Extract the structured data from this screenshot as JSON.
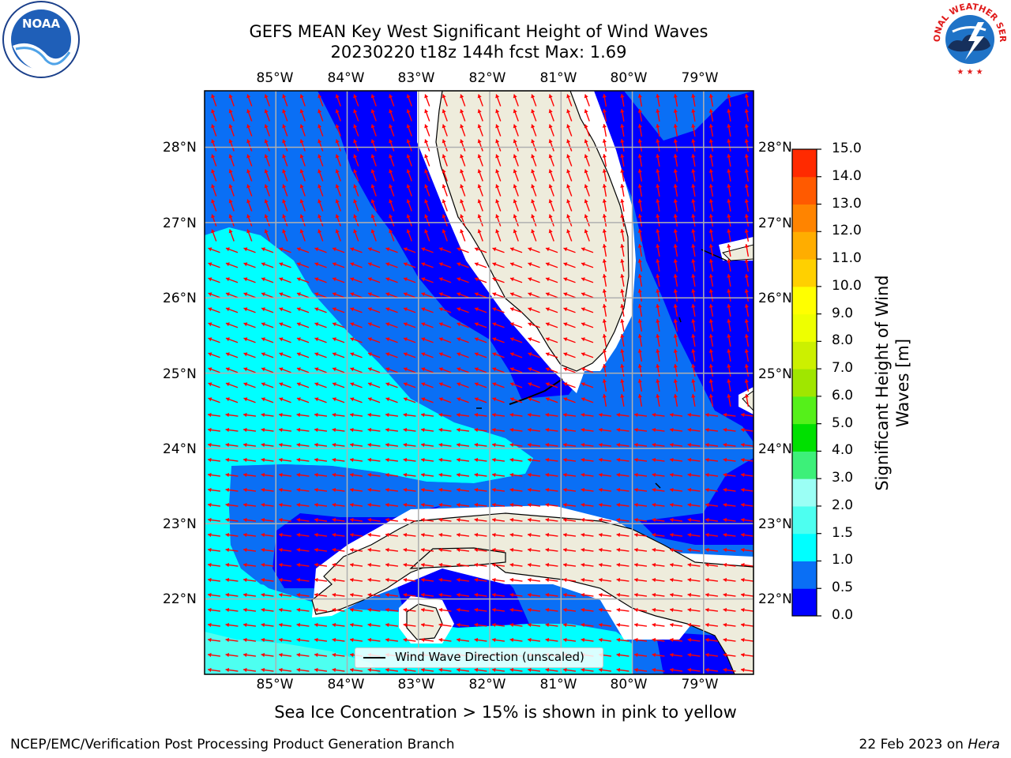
{
  "title": {
    "line1": "GEFS MEAN Key West Significant Height of Wind Waves",
    "line2": "20230220 t18z 144h fcst   Max: 1.69"
  },
  "logos": {
    "left": {
      "name": "noaa-logo",
      "text": "NOAA"
    },
    "right": {
      "name": "national-weather-service-logo",
      "text": "NATIONAL WEATHER SERVICE"
    }
  },
  "map": {
    "lon_labels": [
      "85°W",
      "84°W",
      "83°W",
      "82°W",
      "81°W",
      "80°W",
      "79°W"
    ],
    "lat_labels": [
      "28°N",
      "27°N",
      "26°N",
      "25°N",
      "24°N",
      "23°N",
      "22°N"
    ],
    "lon_range": [
      -86.0,
      -78.3
    ],
    "lat_range": [
      21.0,
      28.75
    ],
    "field_max": 1.69,
    "legend_label": "Wind Wave Direction (unscaled)",
    "colors": {
      "land": "#eeecdc",
      "band_0_0_5": "#0000ff",
      "band_0_5_1_0": "#0a6ff5",
      "band_1_0_1_5": "#00ffff",
      "band_1_5_2_0": "#4dfff0",
      "arrows": "#ff0000",
      "grid": "#b0b0b0"
    }
  },
  "colorbar": {
    "label": "Significant Height of Wind Waves [m]",
    "ticks": [
      "15.0",
      "14.0",
      "13.0",
      "12.0",
      "11.0",
      "10.0",
      "9.0",
      "8.0",
      "7.0",
      "6.0",
      "5.0",
      "4.0",
      "3.0",
      "2.0",
      "1.5",
      "1.0",
      "0.5",
      "0.0"
    ],
    "colors_bottom_to_top": [
      "#0000ff",
      "#0a6ff5",
      "#00ffff",
      "#4dfff0",
      "#9bfff5",
      "#3df079",
      "#00e000",
      "#55f01a",
      "#a0e600",
      "#ccf000",
      "#eeff00",
      "#ffff00",
      "#ffd000",
      "#ffad00",
      "#ff8400",
      "#ff5a00",
      "#ff2a00"
    ]
  },
  "note": "Sea Ice Concentration > 15% is shown in pink to yellow",
  "footer": {
    "credit": "NCEP/EMC/Verification Post Processing Product Generation Branch",
    "date": "22 Feb 2023 on",
    "host": "Hera"
  }
}
